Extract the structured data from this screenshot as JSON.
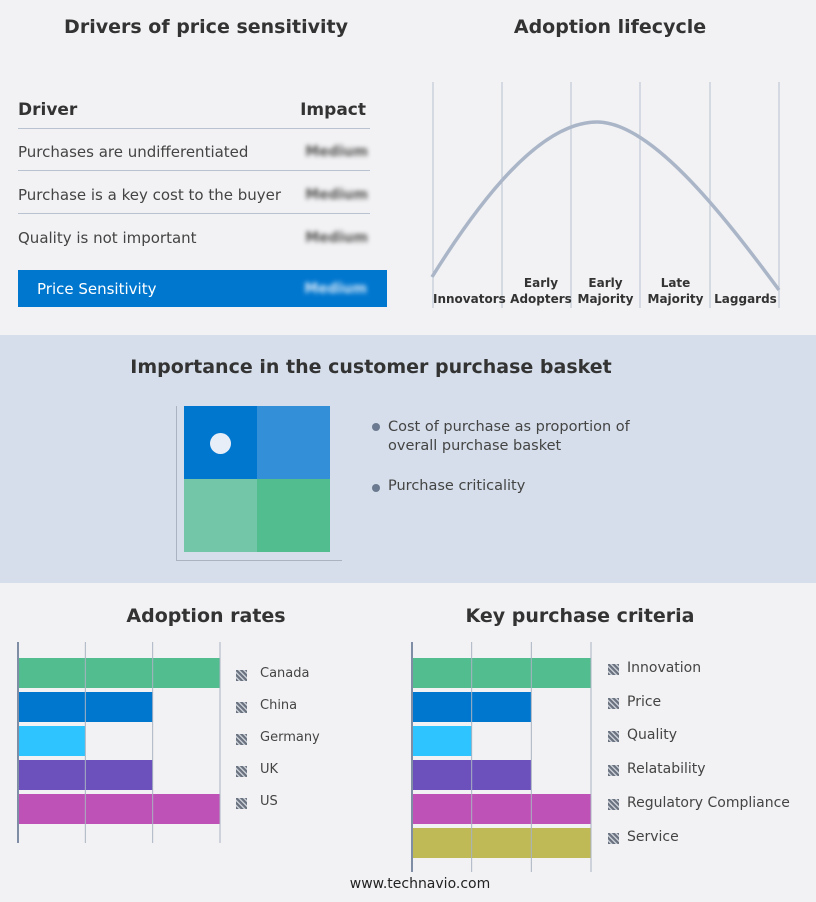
{
  "price_sensitivity": {
    "title": "Drivers of price sensitivity",
    "header": {
      "driver": "Driver",
      "impact": "Impact"
    },
    "rows": [
      {
        "driver": "Purchases are undifferentiated",
        "impact": "Medium"
      },
      {
        "driver": "Purchase is a key cost to the buyer",
        "impact": "Medium"
      },
      {
        "driver": "Quality is not important",
        "impact": "Medium"
      }
    ],
    "summary": {
      "label": "Price Sensitivity",
      "impact": "Medium"
    },
    "accent": "#0077cf"
  },
  "lifecycle": {
    "title": "Adoption lifecycle",
    "stages": [
      "Innovators",
      "Early Adopters",
      "Early Majority",
      "Late Majority",
      "Laggards"
    ]
  },
  "basket": {
    "title": "Importance in the customer purchase basket",
    "legend": [
      "Cost of purchase as proportion of overall purchase basket",
      "Purchase criticality"
    ],
    "quadrant_colors": [
      "#0077cf",
      "#338fd8",
      "#74c6a8",
      "#52bd8f"
    ]
  },
  "chart_data": [
    {
      "type": "bar",
      "title": "Adoption rates",
      "orientation": "horizontal",
      "categories": [
        "Canada",
        "China",
        "Germany",
        "UK",
        "US"
      ],
      "values": [
        3,
        2,
        1,
        2,
        3
      ],
      "xlim": [
        0,
        3
      ],
      "grid": true,
      "legend": "right",
      "colors": [
        "#52bd8f",
        "#0077cf",
        "#2ec4ff",
        "#6c51bd",
        "#bf52b6"
      ]
    },
    {
      "type": "bar",
      "title": "Key purchase criteria",
      "orientation": "horizontal",
      "categories": [
        "Innovation",
        "Price",
        "Quality",
        "Relatability",
        "Regulatory Compliance",
        "Service"
      ],
      "values": [
        3,
        2,
        1,
        2,
        3,
        3
      ],
      "xlim": [
        0,
        3
      ],
      "grid": true,
      "legend": "right",
      "colors": [
        "#52bd8f",
        "#0077cf",
        "#2ec4ff",
        "#6c51bd",
        "#bf52b6",
        "#bfba55"
      ]
    }
  ],
  "footer": "www.technavio.com"
}
